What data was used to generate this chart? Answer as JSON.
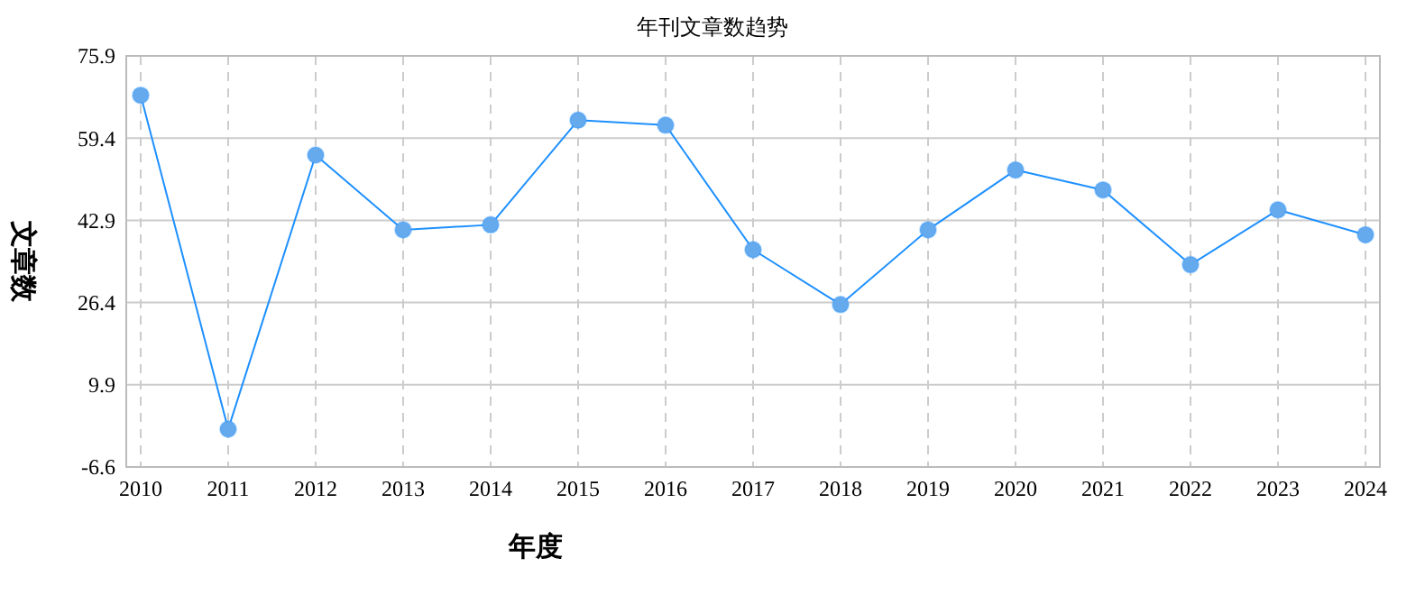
{
  "chart_data": {
    "type": "line",
    "title": "年刊文章数趋势",
    "xlabel": "年度",
    "ylabel": "文章数",
    "categories": [
      "2010",
      "2011",
      "2012",
      "2013",
      "2014",
      "2015",
      "2016",
      "2017",
      "2018",
      "2019",
      "2020",
      "2021",
      "2022",
      "2023",
      "2024"
    ],
    "series": [
      {
        "color": "#1e90ff",
        "values": [
          68,
          1,
          56,
          41,
          42,
          63,
          62,
          37,
          26,
          41,
          53,
          49,
          34,
          45,
          40
        ]
      }
    ],
    "ylim": [
      -6.6,
      75.9
    ],
    "yticks": [
      -6.6,
      9.9,
      26.4,
      42.9,
      59.4,
      75.9
    ],
    "grid": true,
    "marker": "circle",
    "line_style": "solid"
  }
}
